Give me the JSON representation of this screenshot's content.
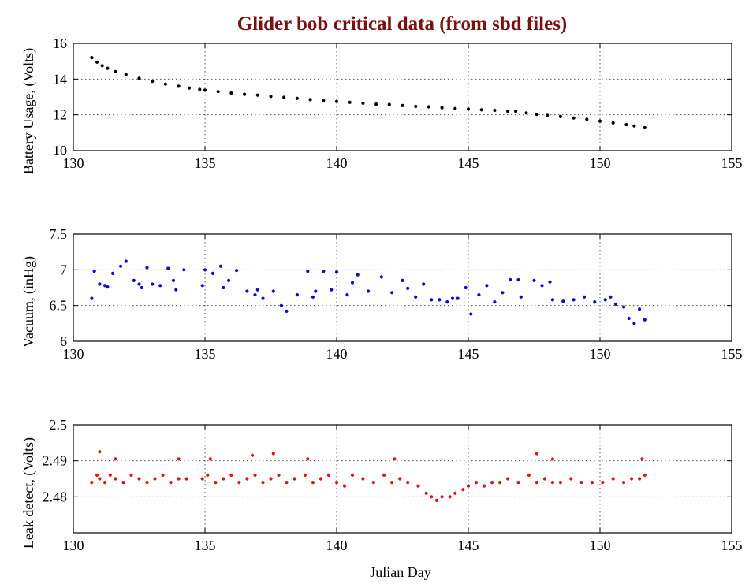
{
  "chart_data": {
    "title": "Glider bob critical data (from sbd files)",
    "xlabel": "Julian Day",
    "xlim": [
      130,
      155
    ],
    "xticks": [
      130,
      135,
      140,
      145,
      150,
      155
    ],
    "grid": "dotted",
    "subplots": [
      {
        "type": "scatter",
        "name": "battery",
        "ylabel": "Battery Usage, (Volts)",
        "ylim": [
          10,
          16
        ],
        "yticks": [
          10,
          12,
          14,
          16
        ],
        "grid_y": [
          12,
          14
        ],
        "color": "#000000",
        "series": [
          {
            "name": "Battery Usage",
            "x": [
              130.7,
              130.9,
              131.1,
              131.3,
              131.6,
              132.0,
              132.5,
              133.0,
              133.5,
              134.0,
              134.4,
              134.8,
              135.0,
              135.5,
              136.0,
              136.5,
              137.0,
              137.5,
              138.0,
              138.5,
              139.0,
              139.5,
              140.0,
              140.5,
              141.0,
              141.5,
              142.0,
              142.5,
              143.0,
              143.5,
              144.0,
              144.5,
              145.0,
              145.5,
              146.0,
              146.5,
              146.8,
              147.2,
              147.6,
              148.0,
              148.5,
              149.0,
              149.5,
              150.0,
              150.5,
              151.0,
              151.3,
              151.7
            ],
            "y": [
              15.2,
              14.95,
              14.75,
              14.6,
              14.42,
              14.25,
              14.05,
              13.88,
              13.72,
              13.6,
              13.5,
              13.42,
              13.38,
              13.3,
              13.22,
              13.15,
              13.1,
              13.03,
              12.98,
              12.92,
              12.85,
              12.8,
              12.75,
              12.7,
              12.65,
              12.6,
              12.58,
              12.52,
              12.47,
              12.45,
              12.4,
              12.35,
              12.32,
              12.28,
              12.25,
              12.2,
              12.2,
              12.1,
              12.02,
              11.97,
              11.9,
              11.82,
              11.75,
              11.65,
              11.55,
              11.45,
              11.38,
              11.28
            ]
          }
        ]
      },
      {
        "type": "scatter",
        "name": "vacuum",
        "ylabel": "Vacuum, (inHg)",
        "ylim": [
          6,
          7.5
        ],
        "yticks": [
          6,
          6.5,
          7,
          7.5
        ],
        "tick_labels": [
          "6",
          "6.5",
          "7",
          "7.5"
        ],
        "grid_y": [
          6.5,
          7
        ],
        "color": "#0a0ad0",
        "series": [
          {
            "name": "Vacuum",
            "x": [
              130.7,
              130.8,
              131.0,
              131.2,
              131.5,
              131.8,
              132.0,
              132.3,
              132.6,
              132.8,
              133.0,
              133.3,
              133.6,
              133.9,
              134.2,
              134.9,
              135.0,
              135.3,
              135.6,
              135.9,
              136.2,
              136.6,
              136.9,
              137.2,
              137.6,
              137.9,
              138.1,
              138.5,
              138.9,
              139.2,
              139.5,
              139.8,
              140.0,
              140.4,
              140.8,
              141.2,
              141.7,
              142.1,
              142.5,
              143.0,
              143.3,
              143.6,
              143.9,
              144.2,
              144.6,
              144.9,
              145.1,
              145.4,
              145.7,
              146.0,
              146.3,
              146.6,
              147.0,
              147.5,
              147.8,
              148.2,
              148.6,
              149.0,
              149.4,
              149.8,
              150.2,
              150.6,
              150.9,
              151.1,
              151.3,
              151.5,
              151.7,
              131.3,
              132.5,
              133.8,
              135.7,
              137.0,
              139.1,
              140.6,
              142.7,
              144.4,
              146.9,
              148.1,
              150.4
            ],
            "y": [
              6.6,
              6.98,
              6.8,
              6.78,
              6.95,
              7.05,
              7.12,
              6.85,
              6.75,
              7.03,
              6.8,
              6.78,
              7.02,
              6.72,
              7.0,
              6.78,
              7.0,
              6.95,
              7.05,
              6.85,
              6.99,
              6.7,
              6.65,
              6.6,
              6.7,
              6.5,
              6.42,
              6.65,
              6.98,
              6.7,
              6.98,
              6.72,
              6.97,
              6.65,
              6.93,
              6.7,
              6.9,
              6.68,
              6.85,
              6.62,
              6.8,
              6.58,
              6.58,
              6.55,
              6.6,
              6.75,
              6.38,
              6.65,
              6.78,
              6.55,
              6.68,
              6.86,
              6.62,
              6.85,
              6.78,
              6.58,
              6.56,
              6.58,
              6.62,
              6.55,
              6.58,
              6.52,
              6.48,
              6.32,
              6.25,
              6.45,
              6.3,
              6.76,
              6.8,
              6.85,
              6.75,
              6.72,
              6.62,
              6.82,
              6.74,
              6.6,
              6.86,
              6.83,
              6.62
            ]
          }
        ]
      },
      {
        "type": "scatter",
        "name": "leak",
        "ylabel": "Leak detect, (Volts)",
        "ylim": [
          2.47,
          2.5
        ],
        "yticks": [
          2.48,
          2.49,
          2.5
        ],
        "tick_labels": [
          "2.48",
          "2.49",
          "2.5"
        ],
        "grid_y": [
          2.48,
          2.49
        ],
        "color": "#dc1414",
        "series": [
          {
            "name": "Leak detect",
            "x": [
              130.7,
              130.9,
              131.0,
              131.2,
              131.4,
              131.6,
              131.9,
              132.2,
              132.5,
              132.8,
              133.1,
              133.4,
              133.7,
              134.0,
              134.3,
              134.9,
              135.1,
              135.4,
              135.7,
              136.0,
              136.3,
              136.6,
              136.9,
              137.2,
              137.5,
              137.8,
              138.1,
              138.4,
              138.8,
              139.1,
              139.4,
              139.7,
              140.0,
              140.3,
              140.6,
              141.0,
              141.4,
              141.8,
              142.1,
              142.4,
              142.7,
              143.1,
              143.4,
              143.6,
              143.8,
              144.0,
              144.3,
              144.5,
              144.8,
              145.0,
              145.3,
              145.6,
              145.9,
              146.2,
              146.5,
              146.9,
              147.3,
              147.6,
              147.9,
              148.2,
              148.5,
              148.9,
              149.3,
              149.7,
              150.1,
              150.5,
              150.9,
              151.2,
              151.5,
              151.7,
              131.0,
              131.6,
              134.0,
              135.2,
              136.8,
              137.6,
              138.9,
              142.2,
              147.6,
              148.2,
              151.6
            ],
            "y": [
              2.484,
              2.486,
              2.485,
              2.484,
              2.486,
              2.485,
              2.484,
              2.486,
              2.485,
              2.484,
              2.485,
              2.486,
              2.484,
              2.485,
              2.485,
              2.485,
              2.486,
              2.484,
              2.485,
              2.486,
              2.484,
              2.485,
              2.486,
              2.484,
              2.485,
              2.486,
              2.484,
              2.485,
              2.486,
              2.484,
              2.485,
              2.486,
              2.484,
              2.483,
              2.486,
              2.485,
              2.484,
              2.486,
              2.484,
              2.485,
              2.484,
              2.483,
              2.481,
              2.48,
              2.479,
              2.48,
              2.48,
              2.481,
              2.482,
              2.483,
              2.484,
              2.483,
              2.484,
              2.484,
              2.485,
              2.484,
              2.486,
              2.484,
              2.485,
              2.484,
              2.484,
              2.485,
              2.484,
              2.484,
              2.484,
              2.485,
              2.484,
              2.485,
              2.485,
              2.486,
              2.4925,
              2.4905,
              2.4905,
              2.4905,
              2.4915,
              2.492,
              2.4905,
              2.4905,
              2.492,
              2.4905,
              2.4905
            ]
          }
        ]
      }
    ]
  }
}
